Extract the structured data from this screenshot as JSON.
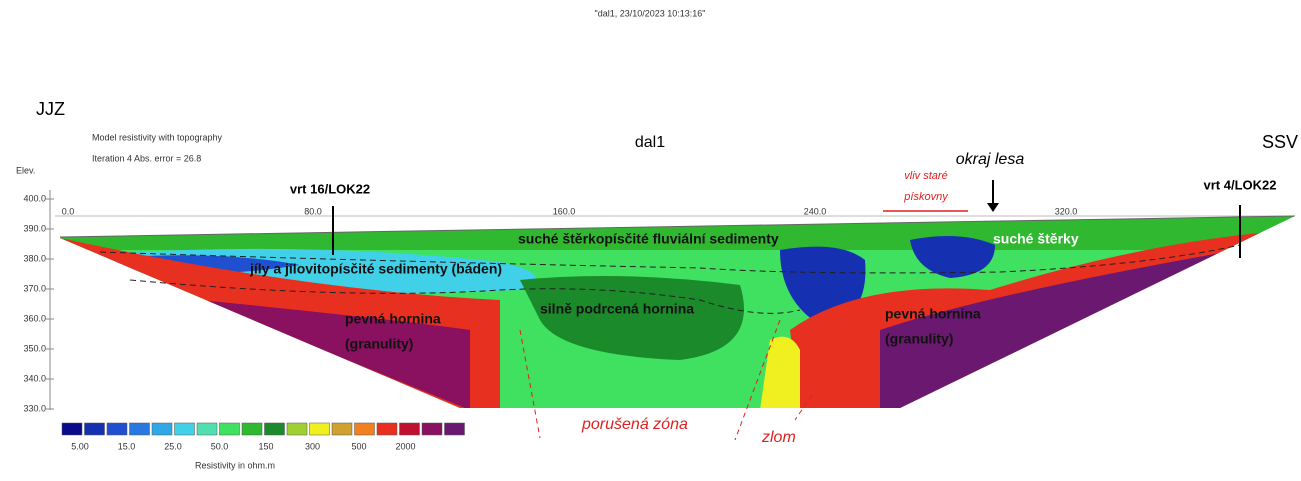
{
  "title": "\"dal1, 23/10/2023 10:13:16\"",
  "profile_name": "dal1",
  "directions": {
    "left": "JJZ",
    "right": "SSV"
  },
  "model": {
    "line1": "Model resistivity with topography",
    "line2": "Iteration 4 Abs. error = 26.8",
    "elev_label": "Elev."
  },
  "y_axis_labels": [
    "400.0",
    "390.0",
    "380.0",
    "370.0",
    "360.0",
    "350.0",
    "340.0",
    "330.0"
  ],
  "x_axis_labels": [
    "0.0",
    "80.0",
    "160.0",
    "240.0",
    "320.0"
  ],
  "annotations": {
    "borehole_left": "vrt 16/LOK22",
    "borehole_right": "vrt 4/LOK22",
    "forest_edge": "okraj lesa",
    "sandpit_1": "vliv staré",
    "sandpit_2": "pískovny",
    "dry_sediments": "suché štěrkopísčité fluviální sedimenty",
    "dry_gravels": "suché štěrky",
    "clay_sediments": "jíly a jílovitopísčité sedimenty (báden)",
    "crushed_rock": "silně podrcená hornina",
    "solid_rock_left_1": "pevná hornina",
    "solid_rock_left_2": "(granulity)",
    "solid_rock_right_1": "pevná hornina",
    "solid_rock_right_2": "(granulity)",
    "fault_zone": "porušená zóna",
    "fault": "zlom"
  },
  "legend": {
    "title": "Resistivity in ohm.m",
    "labels": [
      "5.00",
      "15.0",
      "25.0",
      "50.0",
      "150",
      "300",
      "500",
      "2000"
    ],
    "colors": [
      "#0a0a8c",
      "#1530b0",
      "#1f50d0",
      "#2878e0",
      "#30a8e8",
      "#40d0e8",
      "#50e0b0",
      "#40e060",
      "#30b830",
      "#1a8a2a",
      "#a0d030",
      "#f0f020",
      "#d0a030",
      "#f08020",
      "#e83020",
      "#c01030",
      "#8a1060",
      "#6a1870"
    ]
  }
}
